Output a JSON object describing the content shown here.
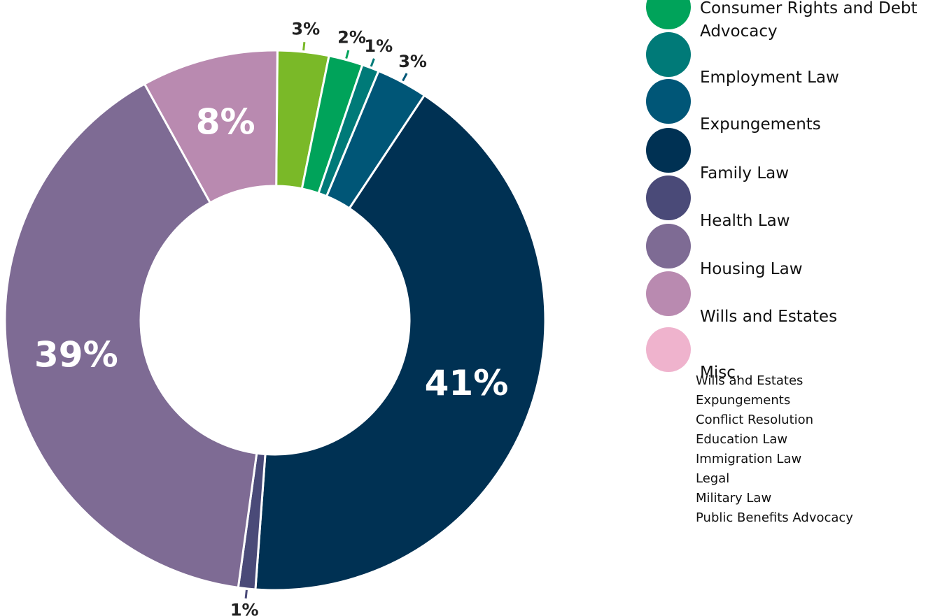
{
  "chart_data": {
    "type": "pie",
    "categories": [
      null,
      "Consumer Rights and Debt Advocacy",
      "Employment Law",
      "Expungements",
      "Family Law",
      "Health Law",
      "Housing Law",
      "Wills and Estates",
      "Misc."
    ],
    "values": [
      3,
      2,
      1,
      3,
      41,
      1,
      39,
      8,
      null
    ],
    "value_labels": [
      "3%",
      "2%",
      "1%",
      "3%",
      "41%",
      "1%",
      "39%",
      "8%",
      null
    ],
    "colors": [
      "#7ab928",
      "#00a35a",
      "#007a78",
      "#005677",
      "#003153",
      "#4a4a78",
      "#7e6b94",
      "#b98ab0",
      "#efb3cd"
    ],
    "donut": true,
    "misc_items": [
      "Wills and Estates",
      "Expungements",
      "Conflict Resolution",
      "Education Law",
      "Immigration Law",
      "Legal",
      "Military Law",
      "Public Benefits Advocacy"
    ]
  }
}
